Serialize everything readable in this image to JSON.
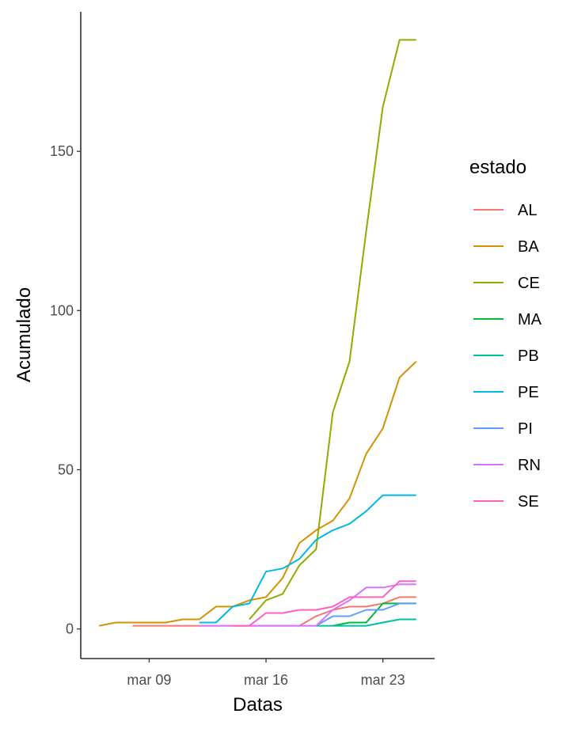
{
  "chart_data": {
    "type": "line",
    "xlabel": "Datas",
    "ylabel": "Acumulado",
    "xlim": [
      "2020-03-04",
      "2020-03-26"
    ],
    "ylim": [
      0,
      190
    ],
    "x_ticks": [
      {
        "date": "2020-03-09",
        "label": "mar 09"
      },
      {
        "date": "2020-03-16",
        "label": "mar 16"
      },
      {
        "date": "2020-03-23",
        "label": "mar 23"
      }
    ],
    "y_ticks": [
      0,
      50,
      100,
      150
    ],
    "grid": false,
    "legend": {
      "title": "estado",
      "position": "right"
    },
    "series": [
      {
        "name": "AL",
        "color": "#F8766D",
        "points": [
          [
            "2020-03-08",
            1
          ],
          [
            "2020-03-18",
            1
          ],
          [
            "2020-03-19",
            4
          ],
          [
            "2020-03-20",
            6
          ],
          [
            "2020-03-21",
            7
          ],
          [
            "2020-03-22",
            7
          ],
          [
            "2020-03-23",
            8
          ],
          [
            "2020-03-24",
            10
          ],
          [
            "2020-03-25",
            10
          ]
        ]
      },
      {
        "name": "BA",
        "color": "#D39200",
        "points": [
          [
            "2020-03-06",
            1
          ],
          [
            "2020-03-07",
            2
          ],
          [
            "2020-03-08",
            2
          ],
          [
            "2020-03-09",
            2
          ],
          [
            "2020-03-10",
            2
          ],
          [
            "2020-03-11",
            3
          ],
          [
            "2020-03-12",
            3
          ],
          [
            "2020-03-13",
            7
          ],
          [
            "2020-03-14",
            7
          ],
          [
            "2020-03-15",
            9
          ],
          [
            "2020-03-16",
            10
          ],
          [
            "2020-03-17",
            16
          ],
          [
            "2020-03-18",
            27
          ],
          [
            "2020-03-19",
            31
          ],
          [
            "2020-03-20",
            34
          ],
          [
            "2020-03-21",
            41
          ],
          [
            "2020-03-22",
            55
          ],
          [
            "2020-03-23",
            63
          ],
          [
            "2020-03-24",
            79
          ],
          [
            "2020-03-25",
            84
          ]
        ]
      },
      {
        "name": "CE",
        "color": "#93AA00",
        "points": [
          [
            "2020-03-15",
            3
          ],
          [
            "2020-03-16",
            9
          ],
          [
            "2020-03-17",
            11
          ],
          [
            "2020-03-18",
            20
          ],
          [
            "2020-03-19",
            25
          ],
          [
            "2020-03-20",
            68
          ],
          [
            "2020-03-21",
            84
          ],
          [
            "2020-03-22",
            125
          ],
          [
            "2020-03-23",
            164
          ],
          [
            "2020-03-24",
            185
          ],
          [
            "2020-03-25",
            185
          ]
        ]
      },
      {
        "name": "MA",
        "color": "#00BA38",
        "points": [
          [
            "2020-03-20",
            1
          ],
          [
            "2020-03-21",
            2
          ],
          [
            "2020-03-22",
            2
          ],
          [
            "2020-03-23",
            8
          ],
          [
            "2020-03-24",
            8
          ],
          [
            "2020-03-25",
            8
          ]
        ]
      },
      {
        "name": "PB",
        "color": "#00C19F",
        "points": [
          [
            "2020-03-19",
            1
          ],
          [
            "2020-03-20",
            1
          ],
          [
            "2020-03-21",
            1
          ],
          [
            "2020-03-22",
            1
          ],
          [
            "2020-03-23",
            2
          ],
          [
            "2020-03-24",
            3
          ],
          [
            "2020-03-25",
            3
          ]
        ]
      },
      {
        "name": "PE",
        "color": "#00B9E3",
        "points": [
          [
            "2020-03-12",
            2
          ],
          [
            "2020-03-13",
            2
          ],
          [
            "2020-03-14",
            7
          ],
          [
            "2020-03-15",
            8
          ],
          [
            "2020-03-16",
            18
          ],
          [
            "2020-03-17",
            19
          ],
          [
            "2020-03-18",
            22
          ],
          [
            "2020-03-19",
            28
          ],
          [
            "2020-03-20",
            31
          ],
          [
            "2020-03-21",
            33
          ],
          [
            "2020-03-22",
            37
          ],
          [
            "2020-03-23",
            42
          ],
          [
            "2020-03-24",
            42
          ],
          [
            "2020-03-25",
            42
          ]
        ]
      },
      {
        "name": "PI",
        "color": "#619CFF",
        "points": [
          [
            "2020-03-19",
            1
          ],
          [
            "2020-03-20",
            4
          ],
          [
            "2020-03-21",
            4
          ],
          [
            "2020-03-22",
            6
          ],
          [
            "2020-03-23",
            6
          ],
          [
            "2020-03-24",
            8
          ],
          [
            "2020-03-25",
            8
          ]
        ]
      },
      {
        "name": "RN",
        "color": "#DB72FB",
        "points": [
          [
            "2020-03-12",
            1
          ],
          [
            "2020-03-15",
            1
          ],
          [
            "2020-03-18",
            1
          ],
          [
            "2020-03-19",
            1
          ],
          [
            "2020-03-20",
            6
          ],
          [
            "2020-03-21",
            9
          ],
          [
            "2020-03-22",
            13
          ],
          [
            "2020-03-23",
            13
          ],
          [
            "2020-03-24",
            14
          ],
          [
            "2020-03-25",
            14
          ]
        ]
      },
      {
        "name": "SE",
        "color": "#FF61C3",
        "points": [
          [
            "2020-03-14",
            1
          ],
          [
            "2020-03-15",
            1
          ],
          [
            "2020-03-16",
            5
          ],
          [
            "2020-03-17",
            5
          ],
          [
            "2020-03-18",
            6
          ],
          [
            "2020-03-19",
            6
          ],
          [
            "2020-03-20",
            7
          ],
          [
            "2020-03-21",
            10
          ],
          [
            "2020-03-22",
            10
          ],
          [
            "2020-03-23",
            10
          ],
          [
            "2020-03-24",
            15
          ],
          [
            "2020-03-25",
            15
          ]
        ]
      }
    ]
  }
}
